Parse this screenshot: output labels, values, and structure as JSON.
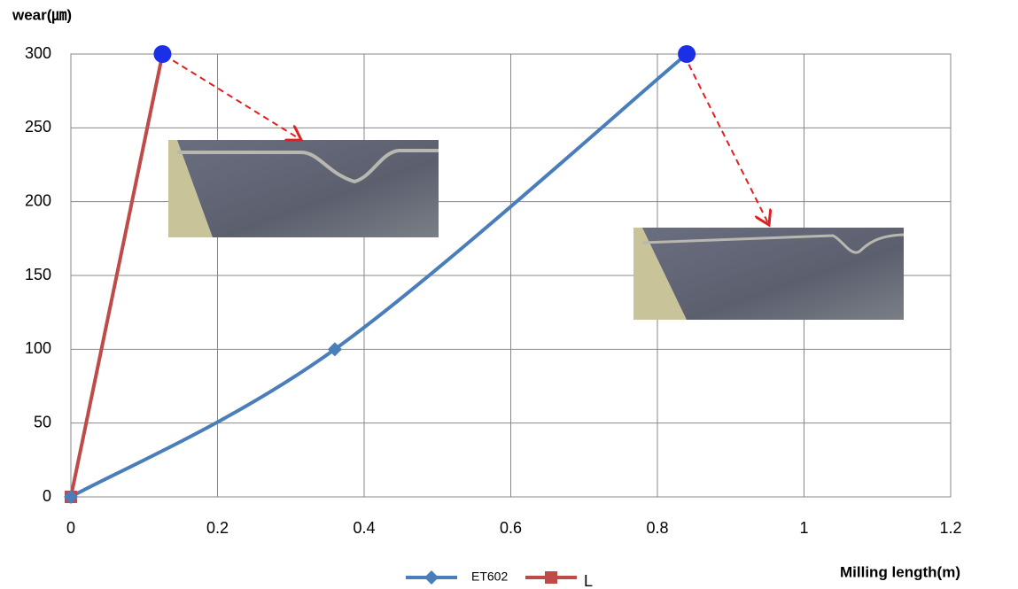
{
  "chart_data": {
    "type": "line",
    "y_label": "wear(㎛)",
    "x_label": "Milling length(m)",
    "series": [
      {
        "name": "ET602",
        "color": "#4a7ebb",
        "marker": "diamond",
        "x": [
          0,
          0.36,
          0.84
        ],
        "values": [
          0,
          100,
          300
        ]
      },
      {
        "name": "L",
        "color": "#be4b48",
        "marker": "square",
        "x": [
          0,
          0.125
        ],
        "values": [
          0,
          300
        ]
      }
    ],
    "xlim": [
      0,
      1.2
    ],
    "xticks": [
      0,
      0.2,
      0.4,
      0.6,
      0.8,
      1,
      1.2
    ],
    "ylim": [
      0,
      300
    ],
    "yticks": [
      0,
      50,
      100,
      150,
      200,
      250,
      300
    ],
    "grid": true,
    "legend": "bottom"
  }
}
